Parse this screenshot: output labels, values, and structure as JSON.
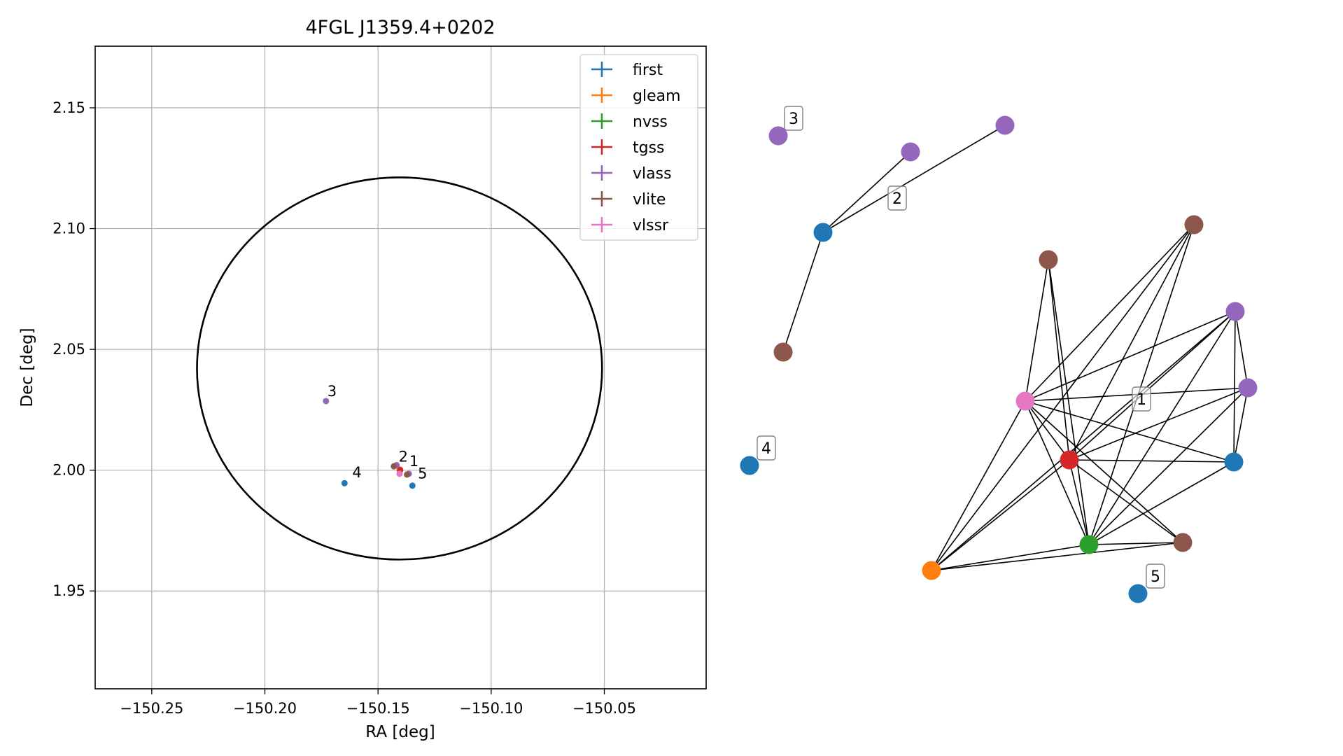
{
  "chart_data": [
    {
      "type": "scatter",
      "title": "4FGL J1359.4+0202",
      "xlabel": "RA [deg]",
      "ylabel": "Dec [deg]",
      "xlim": [
        -150.275,
        -150.005
      ],
      "ylim": [
        1.9095,
        2.1755
      ],
      "xticks": [
        -150.25,
        -150.2,
        -150.15,
        -150.1,
        -150.05
      ],
      "xtick_labels": [
        "−150.25",
        "−150.20",
        "−150.15",
        "−150.10",
        "−150.05"
      ],
      "yticks": [
        1.95,
        2.0,
        2.05,
        2.1,
        2.15
      ],
      "ytick_labels": [
        "1.95",
        "2.00",
        "2.05",
        "2.10",
        "2.15"
      ],
      "grid": true,
      "legend_position": "top-right",
      "circle": {
        "center_ra": -150.1405,
        "center_dec": 2.0421,
        "radius_ra": 0.0895,
        "radius_dec": 0.0791
      },
      "series": [
        {
          "name": "first",
          "color": "#1f77b4",
          "points": [
            [
              -150.1348,
              1.9936
            ],
            [
              -150.1648,
              1.9946
            ]
          ]
        },
        {
          "name": "gleam",
          "color": "#ff7f0e",
          "points": [
            [
              -150.1405,
              2.0003
            ]
          ]
        },
        {
          "name": "nvss",
          "color": "#2ca02c",
          "points": [
            [
              -150.1403,
              1.9998
            ]
          ]
        },
        {
          "name": "tgss",
          "color": "#d62728",
          "points": [
            [
              -150.1402,
              2.0001
            ]
          ]
        },
        {
          "name": "vlass",
          "color": "#9467bd",
          "points": [
            [
              -150.173,
              2.0286
            ],
            [
              -150.1418,
              2.0021
            ],
            [
              -150.1364,
              1.9985
            ]
          ]
        },
        {
          "name": "vlite",
          "color": "#8c564b",
          "points": [
            [
              -150.143,
              2.0016
            ],
            [
              -150.1372,
              1.9982
            ]
          ]
        },
        {
          "name": "vlssr",
          "color": "#e377c2",
          "points": [
            [
              -150.1405,
              1.9985
            ]
          ]
        }
      ],
      "annotations": [
        {
          "text": "1",
          "ra": -150.1368,
          "dec": 2.001
        },
        {
          "text": "2",
          "ra": -150.1415,
          "dec": 2.003
        },
        {
          "text": "3",
          "ra": -150.173,
          "dec": 2.03
        },
        {
          "text": "4",
          "ra": -150.162,
          "dec": 1.9965
        },
        {
          "text": "5",
          "ra": -150.133,
          "dec": 1.996
        }
      ]
    },
    {
      "type": "network",
      "nodes": [
        {
          "id": "n1",
          "color": "#9467bd"
        },
        {
          "id": "n2",
          "color": "#9467bd"
        },
        {
          "id": "n3",
          "color": "#9467bd"
        },
        {
          "id": "n4",
          "color": "#1f77b4"
        },
        {
          "id": "n5",
          "color": "#8c564b"
        },
        {
          "id": "n6",
          "color": "#8c564b"
        },
        {
          "id": "n7",
          "color": "#8c564b"
        },
        {
          "id": "n8",
          "color": "#9467bd"
        },
        {
          "id": "n9",
          "color": "#9467bd"
        },
        {
          "id": "n10",
          "color": "#e377c2"
        },
        {
          "id": "n11",
          "color": "#d62728"
        },
        {
          "id": "n12",
          "color": "#1f77b4"
        },
        {
          "id": "n13",
          "color": "#1f77b4"
        },
        {
          "id": "n14",
          "color": "#2ca02c"
        },
        {
          "id": "n15",
          "color": "#8c564b"
        },
        {
          "id": "n16",
          "color": "#ff7f0e"
        },
        {
          "id": "n17",
          "color": "#1f77b4"
        }
      ],
      "edges": [
        [
          "n4",
          "n2"
        ],
        [
          "n4",
          "n3"
        ],
        [
          "n4",
          "n5"
        ],
        [
          "n10",
          "n6"
        ],
        [
          "n10",
          "n7"
        ],
        [
          "n10",
          "n8"
        ],
        [
          "n10",
          "n9"
        ],
        [
          "n10",
          "n11"
        ],
        [
          "n10",
          "n12"
        ],
        [
          "n10",
          "n14"
        ],
        [
          "n10",
          "n15"
        ],
        [
          "n10",
          "n16"
        ],
        [
          "n11",
          "n6"
        ],
        [
          "n11",
          "n7"
        ],
        [
          "n11",
          "n8"
        ],
        [
          "n11",
          "n9"
        ],
        [
          "n11",
          "n12"
        ],
        [
          "n11",
          "n14"
        ],
        [
          "n11",
          "n15"
        ],
        [
          "n11",
          "n16"
        ],
        [
          "n14",
          "n6"
        ],
        [
          "n14",
          "n7"
        ],
        [
          "n14",
          "n8"
        ],
        [
          "n14",
          "n9"
        ],
        [
          "n14",
          "n12"
        ],
        [
          "n14",
          "n15"
        ],
        [
          "n14",
          "n16"
        ],
        [
          "n16",
          "n7"
        ],
        [
          "n16",
          "n8"
        ],
        [
          "n16",
          "n15"
        ],
        [
          "n8",
          "n9"
        ],
        [
          "n8",
          "n12"
        ],
        [
          "n9",
          "n12"
        ]
      ],
      "labels": [
        "1",
        "2",
        "3",
        "4",
        "5"
      ]
    }
  ]
}
